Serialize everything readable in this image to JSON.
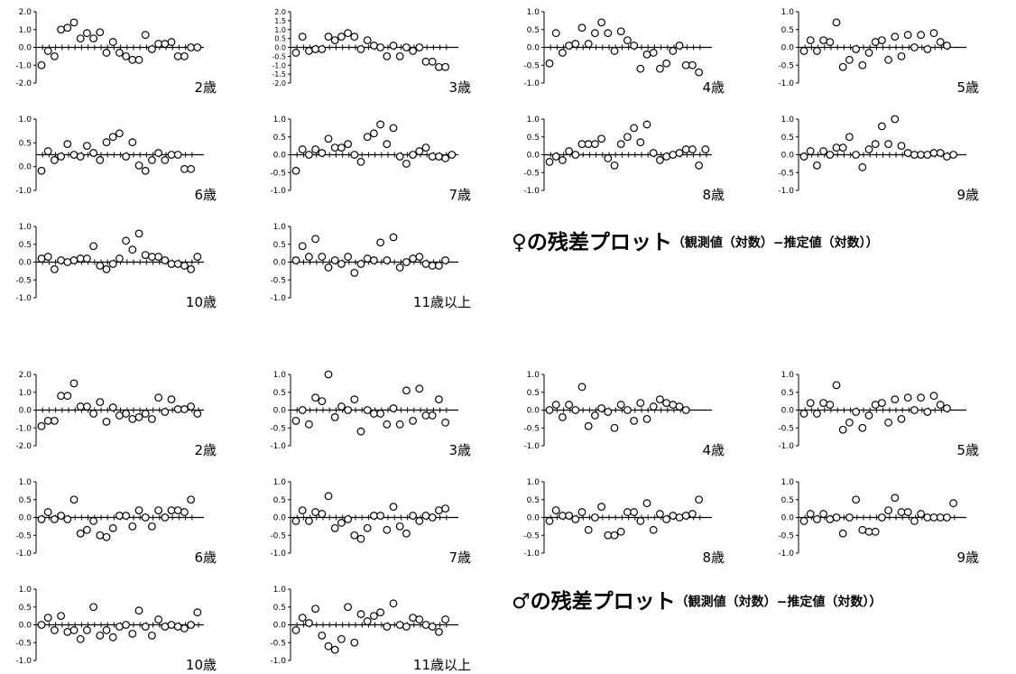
{
  "chart_data": [
    {
      "type": "scatter",
      "panel_label": "2歳",
      "group": "female",
      "yticks": [
        "2.0",
        "1.0",
        "0.0",
        "-1.0",
        "-2.0"
      ],
      "ylim": [
        -2,
        2
      ],
      "values": [
        -1.0,
        -0.2,
        -0.5,
        1.0,
        1.1,
        1.4,
        0.5,
        0.8,
        0.5,
        0.85,
        -0.3,
        0.3,
        -0.3,
        -0.5,
        -0.7,
        -0.7,
        0.7,
        -0.1,
        0.2,
        0.2,
        0.3,
        -0.5,
        -0.5,
        0.0,
        0.0
      ]
    },
    {
      "type": "scatter",
      "panel_label": "3歳",
      "group": "female",
      "yticks": [
        "2.0",
        "1.5",
        "1.0",
        "0.5",
        "0.0",
        "-0.5",
        "-1.0",
        "-1.5",
        "-2.0"
      ],
      "ylim": [
        -2,
        2
      ],
      "values": [
        -0.3,
        0.6,
        -0.2,
        -0.1,
        -0.1,
        0.6,
        0.4,
        0.6,
        0.8,
        0.6,
        -0.1,
        0.4,
        0.1,
        0.0,
        -0.5,
        0.1,
        -0.5,
        0.0,
        -0.2,
        0.0,
        -0.8,
        -0.8,
        -1.1,
        -1.1
      ]
    },
    {
      "type": "scatter",
      "panel_label": "4歳",
      "group": "female",
      "yticks": [
        "1.0",
        "0.5",
        "0.0",
        "-0.5",
        "-1.0"
      ],
      "ylim": [
        -1,
        1
      ],
      "values": [
        -0.45,
        0.4,
        -0.15,
        0.05,
        0.1,
        0.55,
        0.1,
        0.4,
        0.7,
        0.4,
        -0.1,
        0.45,
        0.2,
        0.05,
        -0.6,
        -0.2,
        -0.15,
        -0.6,
        -0.45,
        -0.1,
        0.05,
        -0.5,
        -0.5,
        -0.7
      ]
    },
    {
      "type": "scatter",
      "panel_label": "5歳",
      "group": "female",
      "yticks": [
        "1.0",
        "0.5",
        "0.0",
        "-0.5",
        "-1.0"
      ],
      "ylim": [
        -1,
        1
      ],
      "values": [
        -0.1,
        0.2,
        -0.1,
        0.2,
        0.15,
        0.7,
        -0.55,
        -0.35,
        -0.05,
        -0.5,
        -0.15,
        0.15,
        0.2,
        -0.35,
        0.3,
        -0.25,
        0.35,
        0.0,
        0.35,
        -0.05,
        0.4,
        0.15,
        0.05
      ]
    },
    {
      "type": "scatter",
      "panel_label": "6歳",
      "group": "female",
      "yticks": [
        "1.0",
        "0.5",
        "0.0",
        "-1.0"
      ],
      "ylim": [
        -1,
        1
      ],
      "values": [
        -0.45,
        0.1,
        -0.15,
        -0.05,
        0.3,
        0.0,
        -0.05,
        0.25,
        0.05,
        -0.15,
        0.35,
        0.5,
        0.6,
        -0.05,
        0.35,
        -0.3,
        -0.45,
        -0.15,
        0.05,
        -0.15,
        0.0,
        0.0,
        -0.4,
        -0.4
      ]
    },
    {
      "type": "scatter",
      "panel_label": "7歳",
      "group": "female",
      "yticks": [
        "1.0",
        "0.5",
        "0.0",
        "-0.5",
        "-1.0"
      ],
      "ylim": [
        -1,
        1
      ],
      "values": [
        -0.45,
        0.15,
        0.0,
        0.15,
        0.05,
        0.45,
        0.2,
        0.2,
        0.3,
        0.0,
        -0.2,
        0.5,
        0.6,
        0.85,
        0.3,
        0.75,
        -0.05,
        -0.25,
        0.0,
        0.1,
        0.2,
        -0.05,
        -0.05,
        -0.1,
        0.0
      ]
    },
    {
      "type": "scatter",
      "panel_label": "8歳",
      "group": "female",
      "yticks": [
        "1.0",
        "0.5",
        "0.0",
        "-0.5",
        "-1.0"
      ],
      "ylim": [
        -1,
        1
      ],
      "values": [
        -0.2,
        -0.05,
        -0.15,
        0.1,
        0.0,
        0.3,
        0.3,
        0.3,
        0.45,
        -0.1,
        -0.3,
        0.3,
        0.5,
        0.75,
        0.35,
        0.85,
        0.05,
        -0.15,
        -0.05,
        0.0,
        0.05,
        0.15,
        0.15,
        -0.3,
        0.15
      ]
    },
    {
      "type": "scatter",
      "panel_label": "9歳",
      "group": "female",
      "yticks": [
        "1.0",
        "0.5",
        "0.0",
        "-0.5",
        "-1.0"
      ],
      "ylim": [
        -1,
        1
      ],
      "values": [
        -0.05,
        0.1,
        -0.3,
        0.1,
        0.0,
        0.2,
        0.2,
        0.5,
        0.0,
        -0.35,
        0.15,
        0.3,
        0.8,
        0.3,
        1.0,
        0.25,
        0.05,
        0.0,
        0.0,
        0.0,
        0.05,
        0.05,
        -0.05,
        0.0
      ]
    },
    {
      "type": "scatter",
      "panel_label": "10歳",
      "group": "female",
      "yticks": [
        "1.0",
        "0.5",
        "0.0",
        "-0.5",
        "-1.0"
      ],
      "ylim": [
        -1,
        1
      ],
      "values": [
        0.1,
        0.15,
        -0.2,
        0.05,
        0.0,
        0.05,
        0.1,
        0.1,
        0.45,
        -0.1,
        -0.2,
        -0.05,
        0.1,
        0.6,
        0.35,
        0.8,
        0.2,
        0.15,
        0.15,
        0.05,
        -0.05,
        -0.05,
        -0.1,
        -0.2,
        0.15
      ]
    },
    {
      "type": "scatter",
      "panel_label": "11歳以上",
      "group": "female",
      "yticks": [
        "1.0",
        "0.5",
        "0.0",
        "-0.5",
        "-1.0"
      ],
      "ylim": [
        -1,
        1
      ],
      "values": [
        0.05,
        0.45,
        0.15,
        0.65,
        0.15,
        -0.15,
        0.05,
        -0.05,
        0.15,
        -0.3,
        -0.05,
        0.1,
        0.05,
        0.55,
        0.05,
        0.7,
        -0.15,
        0.0,
        0.1,
        0.15,
        -0.05,
        -0.1,
        -0.1,
        0.05
      ]
    },
    {
      "type": "scatter",
      "panel_label": "2歳",
      "group": "male",
      "yticks": [
        "2.0",
        "1.0",
        "0.0",
        "-1.0",
        "-2.0"
      ],
      "ylim": [
        -2,
        2
      ],
      "values": [
        -0.9,
        -0.6,
        -0.6,
        0.8,
        0.8,
        1.5,
        0.2,
        0.2,
        -0.2,
        0.45,
        -0.65,
        0.15,
        -0.3,
        -0.2,
        -0.5,
        -0.4,
        -0.2,
        -0.5,
        0.7,
        -0.1,
        0.6,
        0.05,
        0.05,
        0.2,
        -0.2
      ]
    },
    {
      "type": "scatter",
      "panel_label": "3歳",
      "group": "male",
      "yticks": [
        "1.0",
        "0.5",
        "0.0",
        "-0.5",
        "-1.0"
      ],
      "ylim": [
        -1,
        1
      ],
      "values": [
        -0.3,
        0.0,
        -0.4,
        0.35,
        0.25,
        1.0,
        -0.2,
        0.1,
        0.0,
        0.3,
        -0.6,
        0.0,
        -0.1,
        -0.1,
        -0.4,
        0.05,
        -0.4,
        0.55,
        -0.3,
        0.6,
        -0.15,
        -0.15,
        0.3,
        -0.35
      ]
    },
    {
      "type": "scatter",
      "panel_label": "4歳",
      "group": "male",
      "yticks": [
        "1.0",
        "0.5",
        "0.0",
        "-0.5",
        "-1.0"
      ],
      "ylim": [
        -1,
        1
      ],
      "values": [
        0.0,
        0.15,
        -0.2,
        0.15,
        0.0,
        0.65,
        -0.45,
        -0.15,
        0.05,
        -0.05,
        -0.5,
        0.15,
        0.0,
        -0.3,
        0.2,
        -0.25,
        0.1,
        0.3,
        0.2,
        0.15,
        0.1,
        0.0
      ]
    },
    {
      "type": "scatter",
      "panel_label": "5歳",
      "group": "male",
      "yticks": [
        "1.0",
        "0.5",
        "0.0",
        "-0.5",
        "-1.0"
      ],
      "ylim": [
        -1,
        1
      ],
      "values": [
        -0.1,
        0.2,
        -0.1,
        0.2,
        0.15,
        0.7,
        -0.55,
        -0.35,
        -0.05,
        -0.5,
        -0.15,
        0.15,
        0.2,
        -0.35,
        0.3,
        -0.25,
        0.35,
        0.0,
        0.35,
        -0.05,
        0.4,
        0.15,
        0.05
      ]
    },
    {
      "type": "scatter",
      "panel_label": "6歳",
      "group": "male",
      "yticks": [
        "1.0",
        "0.5",
        "0.0",
        "-0.5",
        "-1.0"
      ],
      "ylim": [
        -1,
        1
      ],
      "values": [
        -0.05,
        0.15,
        -0.05,
        0.05,
        -0.05,
        0.5,
        -0.45,
        -0.35,
        -0.1,
        -0.5,
        -0.55,
        -0.3,
        0.05,
        0.05,
        -0.25,
        0.2,
        0.0,
        -0.25,
        0.2,
        0.0,
        0.2,
        0.2,
        0.15,
        0.5
      ]
    },
    {
      "type": "scatter",
      "panel_label": "7歳",
      "group": "male",
      "yticks": [
        "1.0",
        "0.5",
        "0.0",
        "-0.5",
        "-1.0"
      ],
      "ylim": [
        -1,
        1
      ],
      "values": [
        -0.1,
        0.2,
        -0.1,
        0.15,
        0.1,
        0.6,
        -0.3,
        -0.15,
        -0.05,
        -0.5,
        -0.6,
        -0.3,
        0.05,
        0.05,
        -0.35,
        0.3,
        -0.25,
        -0.45,
        0.05,
        -0.1,
        0.05,
        0.0,
        0.2,
        0.25
      ]
    },
    {
      "type": "scatter",
      "panel_label": "8歳",
      "group": "male",
      "yticks": [
        "1.0",
        "0.5",
        "0.0",
        "-0.5",
        "-1.0"
      ],
      "ylim": [
        -1,
        1
      ],
      "values": [
        -0.1,
        0.2,
        0.05,
        0.05,
        -0.05,
        0.15,
        -0.35,
        0.0,
        0.3,
        -0.5,
        -0.5,
        -0.4,
        0.15,
        0.15,
        -0.1,
        0.4,
        -0.35,
        0.1,
        -0.05,
        0.05,
        0.0,
        0.05,
        0.1,
        0.5
      ]
    },
    {
      "type": "scatter",
      "panel_label": "9歳",
      "group": "male",
      "yticks": [
        "1.0",
        "0.5",
        "0.0",
        "-0.5",
        "-1.0"
      ],
      "ylim": [
        -1,
        1
      ],
      "values": [
        -0.1,
        0.1,
        -0.05,
        0.1,
        -0.05,
        0.0,
        -0.45,
        0.0,
        0.5,
        -0.35,
        -0.4,
        -0.4,
        0.0,
        0.2,
        0.55,
        0.15,
        0.15,
        -0.1,
        0.1,
        0.0,
        0.0,
        0.0,
        0.0,
        0.4
      ]
    },
    {
      "type": "scatter",
      "panel_label": "10歳",
      "group": "male",
      "yticks": [
        "1.0",
        "0.5",
        "0.0",
        "-0.5",
        "-1.0"
      ],
      "ylim": [
        -1,
        1
      ],
      "values": [
        0.0,
        0.2,
        -0.15,
        0.25,
        -0.2,
        -0.15,
        -0.4,
        -0.15,
        0.5,
        -0.3,
        -0.15,
        -0.35,
        -0.05,
        0.0,
        -0.25,
        0.4,
        -0.05,
        -0.3,
        0.15,
        -0.05,
        0.0,
        -0.05,
        -0.1,
        0.0,
        0.35
      ]
    },
    {
      "type": "scatter",
      "panel_label": "11歳以上",
      "group": "male",
      "yticks": [
        "1.0",
        "0.5",
        "0.0",
        "-0.5",
        "-1.0"
      ],
      "ylim": [
        -1,
        1
      ],
      "values": [
        -0.15,
        0.2,
        0.05,
        0.45,
        -0.3,
        -0.6,
        -0.7,
        -0.4,
        0.5,
        -0.5,
        0.3,
        0.1,
        0.25,
        0.35,
        -0.05,
        0.6,
        0.0,
        -0.05,
        0.2,
        0.15,
        0.0,
        -0.05,
        -0.2,
        0.15
      ]
    }
  ],
  "headings": {
    "female_main": "♀の残差プロット",
    "female_sub": "（観測値（対数）−推定値（対数））",
    "male_main": "♂の残差プロット",
    "male_sub": "（観測値（対数）−推定値（対数））"
  },
  "colors": {
    "axis": "#000000",
    "marker_stroke": "#000000",
    "marker_fill": "#ffffff"
  }
}
